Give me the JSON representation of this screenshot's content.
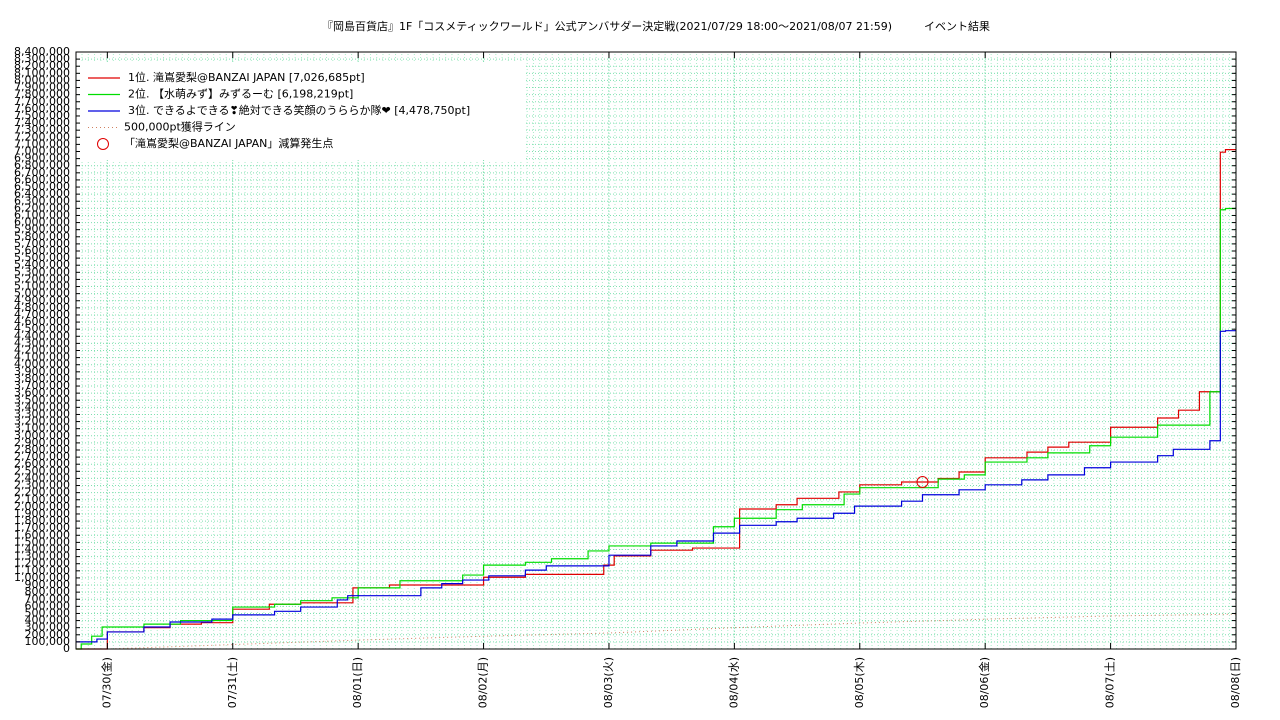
{
  "chart_data": {
    "type": "line",
    "title": "『岡島百貨店』1F「コスメティックワールド」公式アンバサダー決定戦(2021/07/29 18:00〜2021/08/07 21:59)",
    "subtitle": "イベント結果",
    "xlim": [
      "07/29 18:00",
      "08/08 00:00"
    ],
    "xticks": [
      {
        "value": "07/30 00:00",
        "label": "07/30(金)"
      },
      {
        "value": "07/31 00:00",
        "label": "07/31(土)"
      },
      {
        "value": "08/01 00:00",
        "label": "08/01(日)"
      },
      {
        "value": "08/02 00:00",
        "label": "08/02(月)"
      },
      {
        "value": "08/03 00:00",
        "label": "08/03(火)"
      },
      {
        "value": "08/04 00:00",
        "label": "08/04(水)"
      },
      {
        "value": "08/05 00:00",
        "label": "08/05(木)"
      },
      {
        "value": "08/06 00:00",
        "label": "08/06(金)"
      },
      {
        "value": "08/07 00:00",
        "label": "08/07(土)"
      },
      {
        "value": "08/08 00:00",
        "label": "08/08(日)"
      }
    ],
    "ylim": [
      0,
      8400000
    ],
    "yticks": [
      0,
      {
        "value": 100000,
        "label": "100,000"
      },
      {
        "value": 200000,
        "label": "200,000"
      },
      {
        "value": 300000,
        "label": "300,000"
      },
      {
        "value": 400000,
        "label": "400,000"
      },
      {
        "value": 500000,
        "label": "500,000"
      },
      {
        "value": 600000,
        "label": "600,000"
      },
      {
        "value": 700000,
        "label": "700,000"
      },
      {
        "value": 800000,
        "label": "800,000"
      },
      {
        "value": 900000,
        "label": "900,000"
      },
      {
        "value": 1000000,
        "label": "1,000,000"
      },
      {
        "value": 1100000,
        "label": "1,100,000"
      },
      {
        "value": 1200000,
        "label": "1,200,000"
      },
      {
        "value": 1300000,
        "label": "1,300,000"
      },
      {
        "value": 1400000,
        "label": "1,400,000"
      },
      {
        "value": 1500000,
        "label": "1,500,000"
      },
      {
        "value": 1600000,
        "label": "1,600,000"
      },
      {
        "value": 1700000,
        "label": "1,700,000"
      },
      {
        "value": 1800000,
        "label": "1,800,000"
      },
      {
        "value": 1900000,
        "label": "1,900,000"
      },
      {
        "value": 2000000,
        "label": "2,000,000"
      },
      {
        "value": 2100000,
        "label": "2,100,000"
      },
      {
        "value": 2200000,
        "label": "2,200,000"
      },
      {
        "value": 2300000,
        "label": "2,300,000"
      },
      {
        "value": 2400000,
        "label": "2,400,000"
      },
      {
        "value": 2500000,
        "label": "2,500,000"
      },
      {
        "value": 2600000,
        "label": "2,600,000"
      },
      {
        "value": 2700000,
        "label": "2,700,000"
      },
      {
        "value": 2800000,
        "label": "2,800,000"
      },
      {
        "value": 2900000,
        "label": "2,900,000"
      },
      {
        "value": 3000000,
        "label": "3,000,000"
      },
      {
        "value": 3100000,
        "label": "3,100,000"
      },
      {
        "value": 3200000,
        "label": "3,200,000"
      },
      {
        "value": 3300000,
        "label": "3,300,000"
      },
      {
        "value": 3400000,
        "label": "3,400,000"
      },
      {
        "value": 3500000,
        "label": "3,500,000"
      },
      {
        "value": 3600000,
        "label": "3,600,000"
      },
      {
        "value": 3700000,
        "label": "3,700,000"
      },
      {
        "value": 3800000,
        "label": "3,800,000"
      },
      {
        "value": 3900000,
        "label": "3,900,000"
      },
      {
        "value": 4000000,
        "label": "4,000,000"
      },
      {
        "value": 4100000,
        "label": "4,100,000"
      },
      {
        "value": 4200000,
        "label": "4,200,000"
      },
      {
        "value": 4300000,
        "label": "4,300,000"
      },
      {
        "value": 4400000,
        "label": "4,400,000"
      },
      {
        "value": 4500000,
        "label": "4,500,000"
      },
      {
        "value": 4600000,
        "label": "4,600,000"
      },
      {
        "value": 4700000,
        "label": "4,700,000"
      },
      {
        "value": 4800000,
        "label": "4,800,000"
      },
      {
        "value": 4900000,
        "label": "4,900,000"
      },
      {
        "value": 5000000,
        "label": "5,000,000"
      },
      {
        "value": 5100000,
        "label": "5,100,000"
      },
      {
        "value": 5200000,
        "label": "5,200,000"
      },
      {
        "value": 5300000,
        "label": "5,300,000"
      },
      {
        "value": 5400000,
        "label": "5,400,000"
      },
      {
        "value": 5500000,
        "label": "5,500,000"
      },
      {
        "value": 5600000,
        "label": "5,600,000"
      },
      {
        "value": 5700000,
        "label": "5,700,000"
      },
      {
        "value": 5800000,
        "label": "5,800,000"
      },
      {
        "value": 5900000,
        "label": "5,900,000"
      },
      {
        "value": 6000000,
        "label": "6,000,000"
      },
      {
        "value": 6100000,
        "label": "6,100,000"
      },
      {
        "value": 6200000,
        "label": "6,200,000"
      },
      {
        "value": 6300000,
        "label": "6,300,000"
      },
      {
        "value": 6400000,
        "label": "6,400,000"
      },
      {
        "value": 6500000,
        "label": "6,500,000"
      },
      {
        "value": 6600000,
        "label": "6,600,000"
      },
      {
        "value": 6700000,
        "label": "6,700,000"
      },
      {
        "value": 6800000,
        "label": "6,800,000"
      },
      {
        "value": 6900000,
        "label": "6,900,000"
      },
      {
        "value": 7000000,
        "label": "7,000,000"
      },
      {
        "value": 7100000,
        "label": "7,100,000"
      },
      {
        "value": 7200000,
        "label": "7,200,000"
      },
      {
        "value": 7300000,
        "label": "7,300,000"
      },
      {
        "value": 7400000,
        "label": "7,400,000"
      },
      {
        "value": 7500000,
        "label": "7,500,000"
      },
      {
        "value": 7600000,
        "label": "7,600,000"
      },
      {
        "value": 7700000,
        "label": "7,700,000"
      },
      {
        "value": 7800000,
        "label": "7,800,000"
      },
      {
        "value": 7900000,
        "label": "7,900,000"
      },
      {
        "value": 8000000,
        "label": "8,000,000"
      },
      {
        "value": 8100000,
        "label": "8,100,000"
      },
      {
        "value": 8200000,
        "label": "8,200,000"
      },
      {
        "value": 8300000,
        "label": "8,300,000"
      },
      {
        "value": 8400000,
        "label": "8,400,000"
      }
    ],
    "grid": true,
    "legend": "upper-left",
    "series": [
      {
        "name": "1位. 滝嶌愛梨@BANZAI JAPAN [7,026,685pt]",
        "color": "#e00000",
        "type": "step",
        "x": [
          "07/29 18:00",
          "07/30 00:00",
          "07/30 07:00",
          "07/30 12:00",
          "07/30 18:00",
          "07/31 00:00",
          "07/31 07:00",
          "07/31 13:00",
          "07/31 23:00",
          "08/01 06:00",
          "08/02 00:00",
          "08/02 08:00",
          "08/02 23:00",
          "08/03 01:00",
          "08/03 08:00",
          "08/03 16:00",
          "08/04 01:00",
          "08/04 08:00",
          "08/04 12:00",
          "08/04 20:00",
          "08/05 00:00",
          "08/05 08:00",
          "08/05 15:00",
          "08/05 19:00",
          "08/06 00:00",
          "08/06 08:00",
          "08/06 12:00",
          "08/06 16:00",
          "08/07 00:00",
          "08/07 09:00",
          "08/07 13:00",
          "08/07 17:00",
          "08/07 21:00",
          "08/07 21:59"
        ],
        "values": [
          0,
          240000,
          300000,
          350000,
          370000,
          560000,
          630000,
          650000,
          860000,
          900000,
          1010000,
          1050000,
          1180000,
          1310000,
          1390000,
          1420000,
          1970000,
          2030000,
          2120000,
          2210000,
          2310000,
          2350000,
          2400000,
          2490000,
          2690000,
          2770000,
          2840000,
          2910000,
          3120000,
          3250000,
          3360000,
          3620000,
          6990000,
          7026685
        ]
      },
      {
        "name": "2位. 【水萌みず】みずるーむ [6,198,219pt]",
        "color": "#00dd00",
        "type": "step",
        "x": [
          "07/29 18:00",
          "07/29 19:00",
          "07/29 21:00",
          "07/29 23:00",
          "07/30 07:00",
          "07/30 14:00",
          "07/31 00:00",
          "07/31 08:00",
          "07/31 13:00",
          "07/31 19:00",
          "08/01 00:00",
          "08/01 08:00",
          "08/01 20:00",
          "08/02 00:00",
          "08/02 08:00",
          "08/02 13:00",
          "08/02 20:00",
          "08/03 00:00",
          "08/03 08:00",
          "08/03 20:00",
          "08/04 00:00",
          "08/04 08:00",
          "08/04 13:00",
          "08/04 21:00",
          "08/05 00:00",
          "08/05 15:00",
          "08/05 20:00",
          "08/06 00:00",
          "08/06 08:00",
          "08/06 12:00",
          "08/06 20:00",
          "08/07 00:00",
          "08/07 09:00",
          "08/07 19:00",
          "08/07 21:00",
          "08/07 21:59"
        ],
        "values": [
          0,
          70000,
          180000,
          310000,
          350000,
          400000,
          590000,
          630000,
          680000,
          720000,
          860000,
          960000,
          1040000,
          1180000,
          1220000,
          1270000,
          1380000,
          1450000,
          1490000,
          1720000,
          1840000,
          1960000,
          2030000,
          2180000,
          2270000,
          2390000,
          2450000,
          2630000,
          2690000,
          2760000,
          2860000,
          2980000,
          3150000,
          3620000,
          6180000,
          6198219
        ]
      },
      {
        "name": "3位. できるよできる❣絶対できる笑顔のうららか隊❤ [4,478,750pt]",
        "color": "#0000dd",
        "type": "step",
        "x": [
          "07/29 18:00",
          "07/29 22:00",
          "07/30 00:00",
          "07/30 07:00",
          "07/30 12:00",
          "07/30 20:00",
          "07/31 00:00",
          "07/31 08:00",
          "07/31 13:00",
          "07/31 20:00",
          "07/31 22:00",
          "08/01 12:00",
          "08/01 16:00",
          "08/01 20:00",
          "08/02 01:00",
          "08/02 08:00",
          "08/02 12:00",
          "08/03 00:00",
          "08/03 08:00",
          "08/03 13:00",
          "08/03 20:00",
          "08/04 01:00",
          "08/04 08:00",
          "08/04 12:00",
          "08/04 19:00",
          "08/04 23:00",
          "08/05 08:00",
          "08/05 12:00",
          "08/05 19:00",
          "08/06 00:00",
          "08/06 07:00",
          "08/06 12:00",
          "08/06 19:00",
          "08/07 00:00",
          "08/07 09:00",
          "08/07 12:00",
          "08/07 19:00",
          "08/07 21:00",
          "08/07 21:59"
        ],
        "values": [
          100000,
          140000,
          240000,
          310000,
          380000,
          420000,
          480000,
          530000,
          590000,
          690000,
          750000,
          860000,
          920000,
          970000,
          1030000,
          1110000,
          1170000,
          1320000,
          1450000,
          1520000,
          1630000,
          1740000,
          1790000,
          1840000,
          1910000,
          2010000,
          2080000,
          2170000,
          2240000,
          2310000,
          2380000,
          2450000,
          2550000,
          2630000,
          2720000,
          2810000,
          2930000,
          4470000,
          4478750
        ]
      },
      {
        "name": "500,000pt獲得ライン",
        "color": "#d08060",
        "type": "dotted",
        "x": [
          "07/30 00:00",
          "08/01 00:00",
          "08/02 00:00",
          "08/03 00:00",
          "08/04 00:00",
          "08/05 00:00",
          "08/06 00:00",
          "08/07 00:00",
          "08/08 00:00"
        ],
        "values": [
          0,
          125000,
          180000,
          225000,
          300000,
          365000,
          420000,
          465000,
          490000
        ]
      },
      {
        "name": "「滝嶌愛梨@BANZAI JAPAN」減算発生点",
        "color": "#e00000",
        "type": "marker",
        "x": [
          "08/05 12:00"
        ],
        "values": [
          2350000
        ]
      }
    ]
  }
}
